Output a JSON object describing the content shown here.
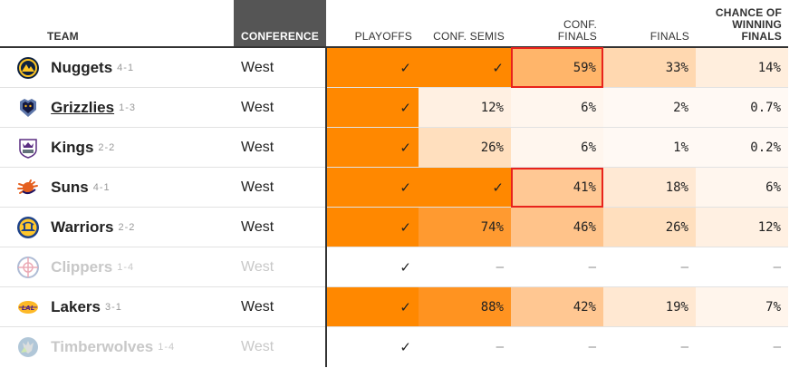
{
  "headers": {
    "team": "TEAM",
    "conference": "CONFERENCE",
    "playoffs": "PLAYOFFS",
    "conf_semis": "CONF. SEMIS",
    "conf_finals_1": "CONF.",
    "conf_finals_2": "FINALS",
    "finals": "FINALS",
    "chance_1": "CHANCE OF",
    "chance_2": "WINNING",
    "chance_3": "FINALS"
  },
  "colors": {
    "full": "#ff8800",
    "c88": "#ff9320",
    "c74": "#ff9a30",
    "c59": "#ffb56a",
    "c46": "#ffc38a",
    "c41": "#ffc894",
    "c42": "#ffc792",
    "c33": "#ffd8b0",
    "c26": "#ffdfbe",
    "c19": "#ffe8d2",
    "c18": "#ffe9d4",
    "c14": "#ffeedd",
    "c12": "#fff0e2",
    "c7": "#fff5ec",
    "c6": "#fff6ee",
    "low": "#fff9f4",
    "none": "#ffffff"
  },
  "rows": [
    {
      "name": "Nuggets",
      "record": "4-1",
      "conference": "West",
      "logo": "nuggets-logo",
      "playoffs": "✓",
      "conf_semis": "✓",
      "conf_finals": "59%",
      "finals": "33%",
      "chance": "14%"
    },
    {
      "name": "Grizzlies",
      "record": "1-3",
      "conference": "West",
      "logo": "grizzlies-logo",
      "playoffs": "✓",
      "conf_semis": "12%",
      "conf_finals": "6%",
      "finals": "2%",
      "chance": "0.7%"
    },
    {
      "name": "Kings",
      "record": "2-2",
      "conference": "West",
      "logo": "kings-logo",
      "playoffs": "✓",
      "conf_semis": "26%",
      "conf_finals": "6%",
      "finals": "1%",
      "chance": "0.2%"
    },
    {
      "name": "Suns",
      "record": "4-1",
      "conference": "West",
      "logo": "suns-logo",
      "playoffs": "✓",
      "conf_semis": "✓",
      "conf_finals": "41%",
      "finals": "18%",
      "chance": "6%"
    },
    {
      "name": "Warriors",
      "record": "2-2",
      "conference": "West",
      "logo": "warriors-logo",
      "playoffs": "✓",
      "conf_semis": "74%",
      "conf_finals": "46%",
      "finals": "26%",
      "chance": "12%"
    },
    {
      "name": "Clippers",
      "record": "1-4",
      "conference": "West",
      "logo": "clippers-logo",
      "playoffs": "✓",
      "conf_semis": "—",
      "conf_finals": "—",
      "finals": "—",
      "chance": "—"
    },
    {
      "name": "Lakers",
      "record": "3-1",
      "conference": "West",
      "logo": "lakers-logo",
      "playoffs": "✓",
      "conf_semis": "88%",
      "conf_finals": "42%",
      "finals": "19%",
      "chance": "7%"
    },
    {
      "name": "Timberwolves",
      "record": "1-4",
      "conference": "West",
      "logo": "timberwolves-logo",
      "playoffs": "✓",
      "conf_semis": "—",
      "conf_finals": "—",
      "finals": "—",
      "chance": "—"
    }
  ]
}
